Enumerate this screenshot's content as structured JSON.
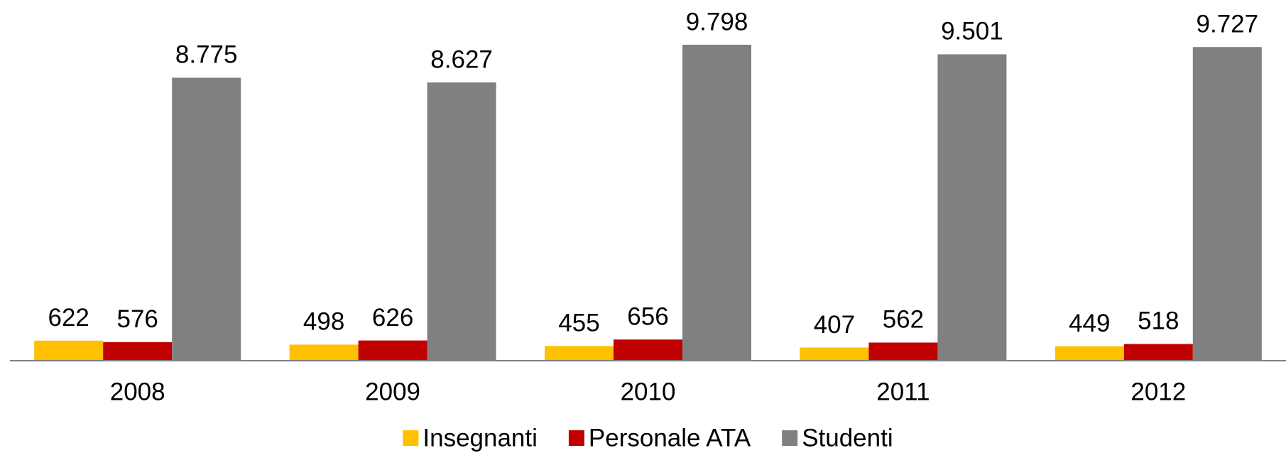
{
  "chart_data": {
    "type": "bar",
    "categories": [
      "2008",
      "2009",
      "2010",
      "2011",
      "2012"
    ],
    "series": [
      {
        "name": "Insegnanti",
        "color": "#ffc000",
        "values": [
          622,
          498,
          455,
          407,
          449
        ]
      },
      {
        "name": "Personale ATA",
        "color": "#c00000",
        "values": [
          576,
          626,
          656,
          562,
          518
        ]
      },
      {
        "name": "Studenti",
        "color": "#808080",
        "values": [
          8775,
          8627,
          9798,
          9501,
          9727
        ],
        "value_labels": [
          "8.775",
          "8.627",
          "9.798",
          "9.501",
          "9.727"
        ]
      }
    ],
    "legend": "bottom"
  }
}
